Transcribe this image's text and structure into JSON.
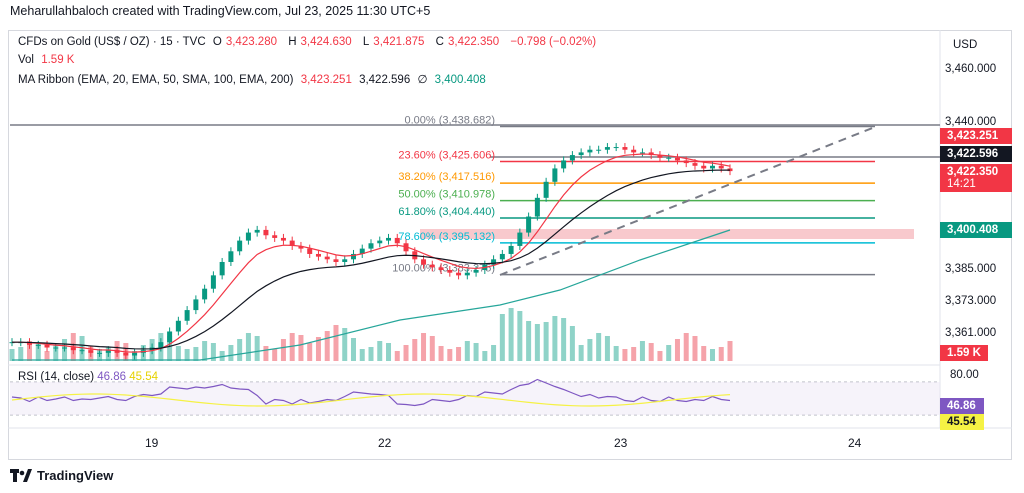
{
  "header": {
    "attribution": "Meharullahbaloch created with TradingView.com, Jul 23, 2025 11:30 UTC+5"
  },
  "legend": {
    "symbol": "CFDs on Gold (US$ / OZ) · 15 · TVC",
    "o_label": "O",
    "o": "3,423.280",
    "h_label": "H",
    "h": "3,424.630",
    "l_label": "L",
    "l": "3,421.875",
    "c_label": "C",
    "c": "3,422.350",
    "change": "−0.798 (−0.02%)",
    "vol_label": "Vol",
    "vol": "1.59 K",
    "ma_label": "MA Ribbon (EMA, 20, EMA, 50, SMA, 100, EMA, 200)",
    "ma1": "3,423.251",
    "ma2": "3,422.596",
    "ma3_prefix": "∅",
    "ma3": "3,400.408"
  },
  "rsi_legend": {
    "label": "RSI (14, close)",
    "v1": "46.86",
    "v2": "45.54"
  },
  "yaxis": {
    "currency": "USD",
    "ticks": [
      {
        "label": "3,460.000",
        "value": 3460
      },
      {
        "label": "3,440.000",
        "value": 3440
      },
      {
        "label": "3,385.000",
        "value": 3385
      },
      {
        "label": "3,373.000",
        "value": 3373
      },
      {
        "label": "3,361.000",
        "value": 3361
      }
    ],
    "badges": [
      {
        "label": "3,423.251",
        "value": 3423.251,
        "color": "#f23645"
      },
      {
        "label": "3,422.596",
        "value": 3422.596,
        "color": "#131722"
      },
      {
        "label": "3,422.350",
        "sub": "14:21",
        "value": 3422.35,
        "color": "#f23645"
      },
      {
        "label": "3,400.408",
        "value": 3400.408,
        "color": "#089981"
      }
    ],
    "volume_badge": {
      "label": "1.59 K",
      "color": "#f23645"
    },
    "rsi_ticks": [
      {
        "label": "80.00",
        "value": 80
      }
    ],
    "rsi_badges": [
      {
        "label": "46.86",
        "value": 46.86,
        "color": "#7e57c2",
        "text": "#ffffff"
      },
      {
        "label": "45.54",
        "value": 45.54,
        "color": "#f5f244",
        "text": "#131722"
      }
    ]
  },
  "xaxis": {
    "ticks": [
      "19",
      "22",
      "23",
      "24"
    ]
  },
  "colors": {
    "up": "#089981",
    "down": "#f23645",
    "ema20": "#f23645",
    "ema50": "#131722",
    "ema200": "#26a69a",
    "rsi": "#7e57c2",
    "rsi_ma": "#f5f244"
  },
  "chart_data": {
    "type": "candlestick",
    "title": "CFDs on Gold (US$ / OZ) · 15 · TVC",
    "ylim": [
      3361,
      3460
    ],
    "fibonacci": [
      {
        "label": "0.00% (3,438.682)",
        "value": 3438.682,
        "color": "#787b86"
      },
      {
        "label": "23.60% (3,425.606)",
        "value": 3425.606,
        "color": "#f23645"
      },
      {
        "label": "38.20% (3,417.516)",
        "value": 3417.516,
        "color": "#ff9800"
      },
      {
        "label": "50.00% (3,410.978)",
        "value": 3410.978,
        "color": "#4caf50"
      },
      {
        "label": "61.80% (3,404.440)",
        "value": 3404.44,
        "color": "#089981"
      },
      {
        "label": "78.60% (3,395.132)",
        "value": 3395.132,
        "color": "#00bcd4"
      },
      {
        "label": "100.00% (3,383.275)",
        "value": 3383.275,
        "color": "#787b86"
      }
    ],
    "horizontal_lines": [
      3440.5,
      3422.596
    ],
    "candles_close_approx": [
      3358,
      3358,
      3357,
      3357,
      3356,
      3356,
      3356,
      3355,
      3355,
      3354,
      3354,
      3355,
      3354,
      3353,
      3354,
      3355,
      3356,
      3358,
      3362,
      3366,
      3370,
      3374,
      3378,
      3383,
      3388,
      3392,
      3396,
      3399,
      3400,
      3398,
      3397,
      3396,
      3394,
      3393,
      3391,
      3390,
      3389,
      3388,
      3389,
      3391,
      3393,
      3395,
      3396,
      3397,
      3395,
      3392,
      3389,
      3387,
      3386,
      3385,
      3384,
      3383,
      3384,
      3385,
      3387,
      3389,
      3391,
      3394,
      3399,
      3405,
      3412,
      3418,
      3423,
      3426,
      3428,
      3429,
      3430,
      3430,
      3431,
      3431,
      3430,
      3429,
      3429,
      3428,
      3427,
      3427,
      3426,
      3425,
      3424,
      3423,
      3424,
      3423,
      3422
    ]
  }
}
